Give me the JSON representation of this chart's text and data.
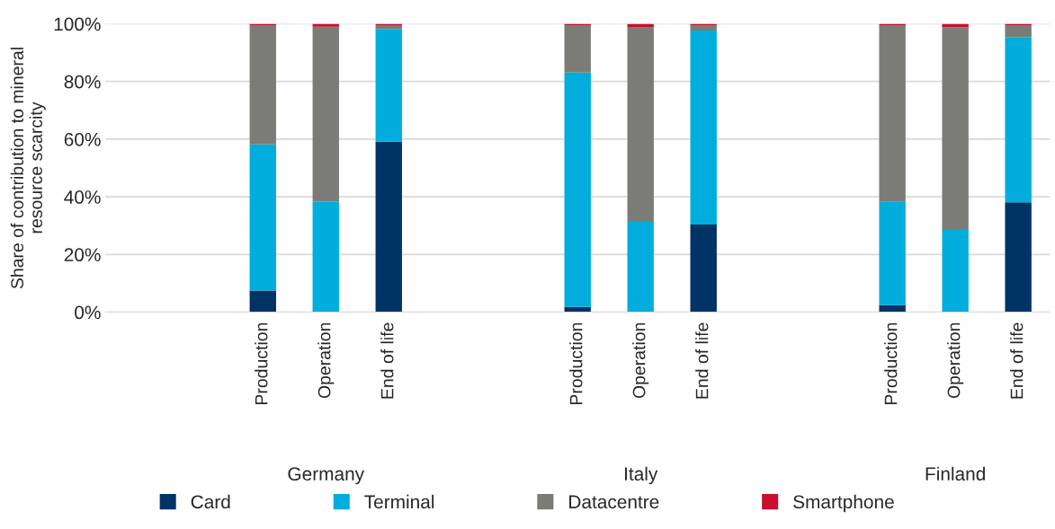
{
  "chart_data": {
    "type": "bar",
    "stacked": true,
    "ylabel": "Share of contribution to mineral\nresource scarcity",
    "categories": [
      null,
      null,
      "Production",
      "Operation",
      "End of life",
      null,
      null,
      "Production",
      "Operation",
      "End of life",
      null,
      null,
      "Production",
      "Operation",
      "End of life"
    ],
    "series": [
      {
        "name": "Card",
        "color": "#003366",
        "values": [
          null,
          null,
          7.5,
          0,
          59.1,
          null,
          null,
          1.8,
          0,
          30.4,
          null,
          null,
          2.4,
          0,
          38.1
        ]
      },
      {
        "name": "Terminal",
        "color": "#00addc",
        "values": [
          null,
          null,
          50.7,
          38.3,
          39.1,
          null,
          null,
          81.3,
          31.3,
          67.3,
          null,
          null,
          36.0,
          28.5,
          57.3
        ]
      },
      {
        "name": "Datacentre",
        "color": "#7b7c77",
        "values": [
          null,
          null,
          41.3,
          60.7,
          1.3,
          null,
          null,
          16.4,
          67.6,
          1.8,
          null,
          null,
          61.1,
          70.3,
          4.1
        ]
      },
      {
        "name": "Smartphone",
        "color": "#c8102e",
        "values": [
          null,
          null,
          0.5,
          1.0,
          0.5,
          null,
          null,
          0.5,
          1.1,
          0.5,
          null,
          null,
          0.5,
          1.2,
          0.5
        ]
      }
    ],
    "ylim": [
      0,
      100
    ],
    "yticks": [
      {
        "value": 0,
        "label": "0%"
      },
      {
        "value": 20,
        "label": "20%"
      },
      {
        "value": 40,
        "label": "40%"
      },
      {
        "value": 60,
        "label": "60%"
      },
      {
        "value": 80,
        "label": "80%"
      },
      {
        "value": 100,
        "label": "100%"
      }
    ],
    "grid": "y",
    "legend": "bottom",
    "annotations": [
      "Germany",
      "Italy",
      "Finland"
    ]
  }
}
